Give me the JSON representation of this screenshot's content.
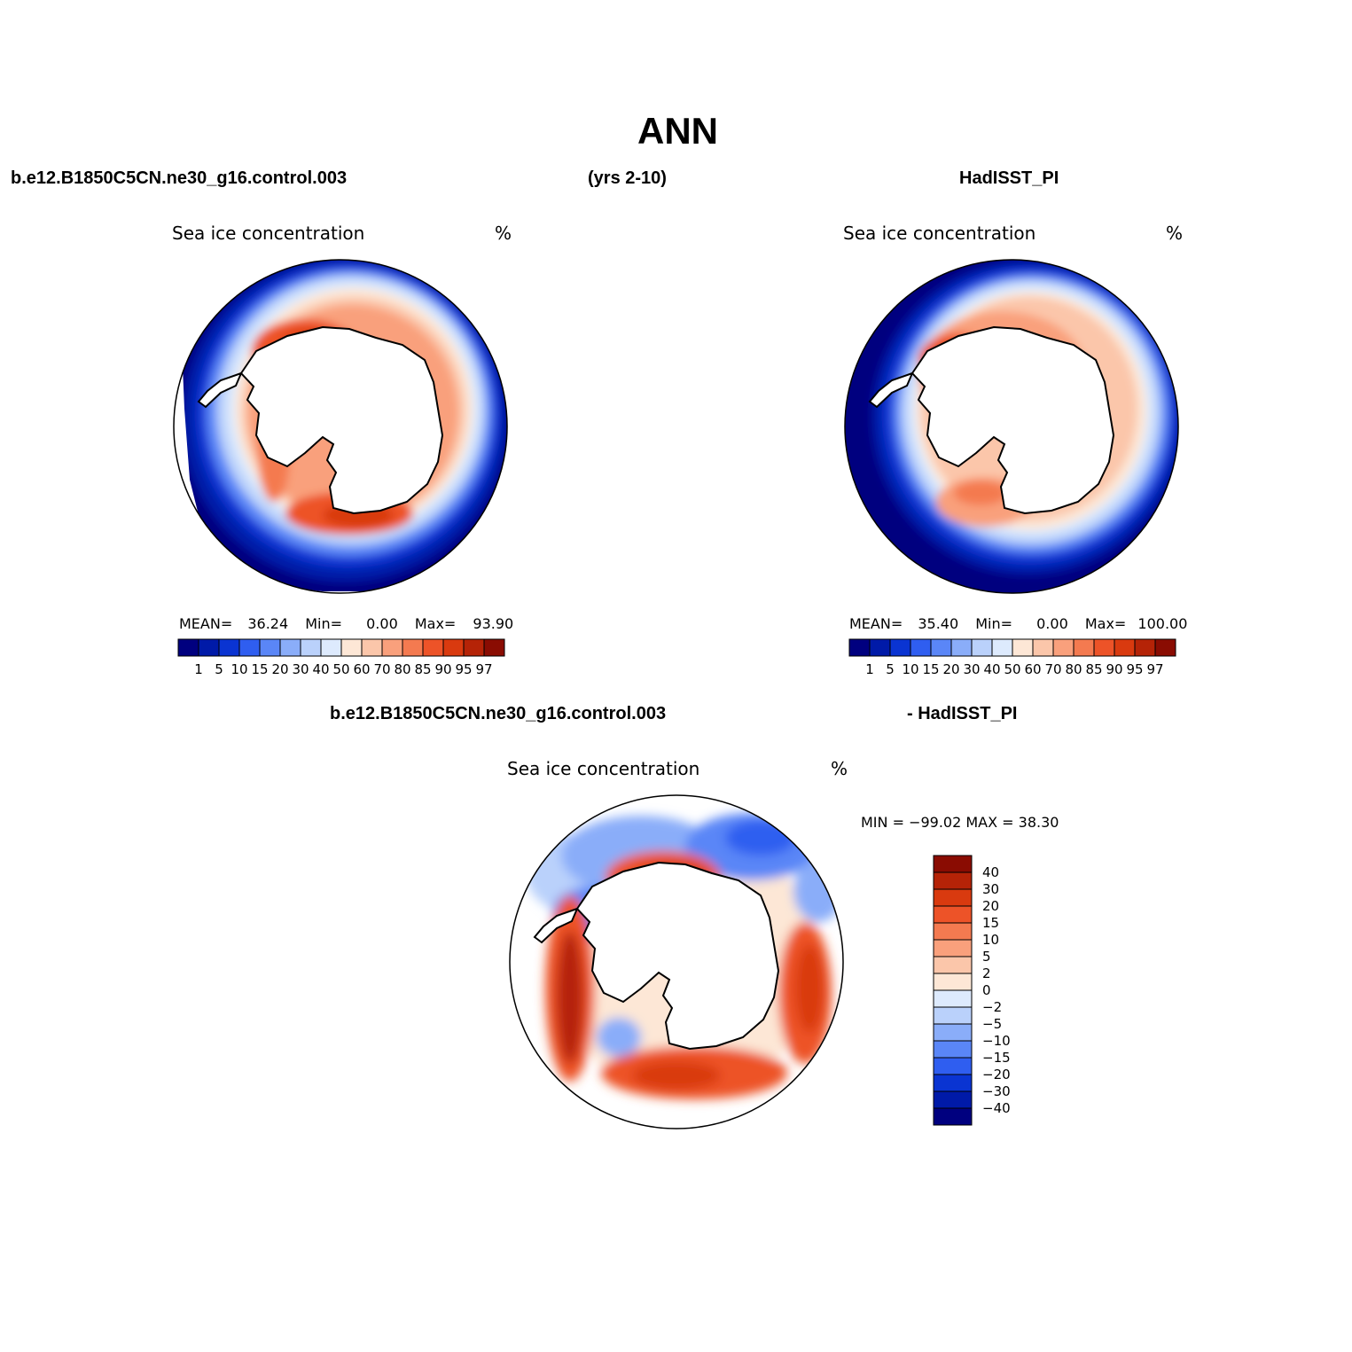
{
  "header": {
    "title": "ANN",
    "case_name": "b.e12.B1850C5CN.ne30_g16.control.003",
    "years": "(yrs 2-10)",
    "obs_name": "HadISST_PI"
  },
  "panels": {
    "model": {
      "title": "Sea ice concentration",
      "units": "%",
      "mean_label": "MEAN=",
      "mean": "36.24",
      "min_label": "Min=",
      "min": "0.00",
      "max_label": "Max=",
      "max": "93.90"
    },
    "obs": {
      "title": "Sea ice concentration",
      "units": "%",
      "mean_label": "MEAN=",
      "mean": "35.40",
      "min_label": "Min=",
      "min": "0.00",
      "max_label": "Max=",
      "max": "100.00"
    },
    "diff": {
      "header_left": "b.e12.B1850C5CN.ne30_g16.control.003",
      "header_right": "- HadISST_PI",
      "title": "Sea ice concentration",
      "units": "%",
      "minmax": "MIN = −99.02 MAX =   38.30"
    }
  },
  "colorbars": {
    "concentration": {
      "levels": [
        "1",
        "5",
        "10",
        "15",
        "20",
        "30",
        "40",
        "50",
        "60",
        "70",
        "80",
        "85",
        "90",
        "95",
        "97"
      ],
      "colors": [
        "#00007f",
        "#001aa8",
        "#0a34d2",
        "#2f5ef0",
        "#5a86f7",
        "#8aadf9",
        "#bad1fb",
        "#ddeafd",
        "#fde7d6",
        "#fbc6aa",
        "#f9a07c",
        "#f47a50",
        "#ed5328",
        "#d93a0f",
        "#b52307",
        "#8a0c02"
      ]
    },
    "difference": {
      "levels": [
        "40",
        "30",
        "20",
        "15",
        "10",
        "5",
        "2",
        "0",
        "−2",
        "−5",
        "−10",
        "−15",
        "−20",
        "−30",
        "−40"
      ],
      "colors": [
        "#8a0c02",
        "#b52307",
        "#d93a0f",
        "#ed5328",
        "#f47a50",
        "#f9a07c",
        "#fbc6aa",
        "#fde7d6",
        "#ddeafd",
        "#bad1fb",
        "#8aadf9",
        "#5a86f7",
        "#2f5ef0",
        "#0a34d2",
        "#001aa8",
        "#00007f"
      ]
    }
  }
}
